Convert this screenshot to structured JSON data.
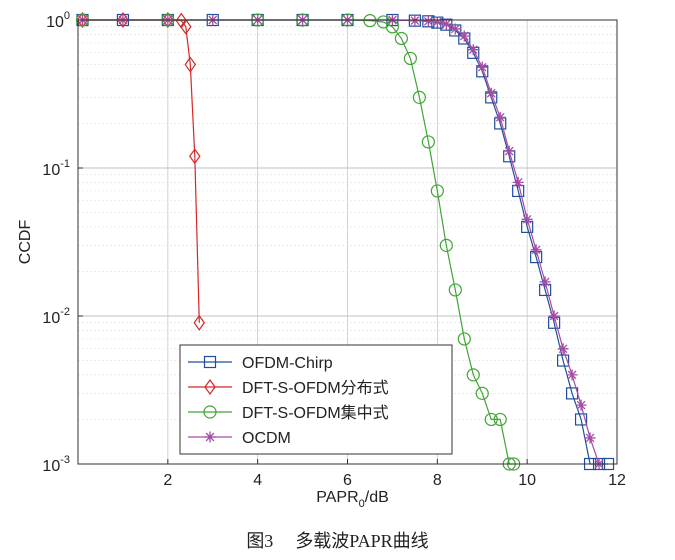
{
  "caption": {
    "label": "图3",
    "title": "多载波PAPR曲线"
  },
  "chart_data": {
    "type": "line",
    "title": "",
    "xlabel_main": "PAPR",
    "xlabel_sub": "0",
    "xlabel_unit": "/dB",
    "ylabel": "CCDF",
    "xlim": [
      0,
      12
    ],
    "ylim": [
      0.001,
      1
    ],
    "yscale": "log",
    "grid": true,
    "legend_position": "bottom-left",
    "x_ticks": [
      2,
      4,
      6,
      8,
      10,
      12
    ],
    "y_ticks": [
      {
        "value": 1,
        "base": "10",
        "exp": "0"
      },
      {
        "value": 0.1,
        "base": "10",
        "exp": "-1"
      },
      {
        "value": 0.01,
        "base": "10",
        "exp": "-2"
      },
      {
        "value": 0.001,
        "base": "10",
        "exp": "-3"
      }
    ],
    "series": [
      {
        "name": "OFDM-Chirp",
        "color": "#1f4e9c",
        "marker": "square",
        "x": [
          0.1,
          1,
          2,
          3,
          4,
          5,
          6,
          7,
          7.5,
          7.8,
          8.0,
          8.2,
          8.4,
          8.6,
          8.8,
          9.0,
          9.2,
          9.4,
          9.6,
          9.8,
          10.0,
          10.2,
          10.4,
          10.6,
          10.8,
          11.0,
          11.2,
          11.4,
          11.6,
          11.8
        ],
        "y": [
          1,
          1,
          1,
          1,
          1,
          1,
          1,
          1,
          0.99,
          0.98,
          0.96,
          0.93,
          0.85,
          0.75,
          0.6,
          0.45,
          0.3,
          0.2,
          0.12,
          0.07,
          0.04,
          0.025,
          0.015,
          0.009,
          0.005,
          0.003,
          0.002,
          0.001,
          0.001,
          0.001
        ]
      },
      {
        "name": "DFT-S-OFDM分布式",
        "color": "#d62728",
        "marker": "diamond",
        "x": [
          0.1,
          1.0,
          2.0,
          2.3,
          2.4,
          2.5,
          2.6,
          2.7
        ],
        "y": [
          1,
          1,
          1,
          0.99,
          0.9,
          0.5,
          0.12,
          0.009
        ]
      },
      {
        "name": "DFT-S-OFDM集中式",
        "color": "#3fa535",
        "marker": "circle",
        "x": [
          0.1,
          2,
          4,
          5,
          6,
          6.5,
          6.8,
          7.0,
          7.2,
          7.4,
          7.6,
          7.8,
          8.0,
          8.2,
          8.4,
          8.6,
          8.8,
          9.0,
          9.2,
          9.4,
          9.6,
          9.7
        ],
        "y": [
          1,
          1,
          1,
          1,
          1,
          0.99,
          0.97,
          0.9,
          0.75,
          0.55,
          0.3,
          0.15,
          0.07,
          0.03,
          0.015,
          0.007,
          0.004,
          0.003,
          0.002,
          0.002,
          0.001,
          0.001
        ]
      },
      {
        "name": "OCDM",
        "color": "#a64ca6",
        "marker": "star",
        "x": [
          0.1,
          1,
          2,
          3,
          4,
          5,
          6,
          7,
          7.5,
          7.8,
          8.0,
          8.2,
          8.4,
          8.6,
          8.8,
          9.0,
          9.2,
          9.4,
          9.6,
          9.8,
          10.0,
          10.2,
          10.4,
          10.6,
          10.8,
          11.0,
          11.2,
          11.4,
          11.6
        ],
        "y": [
          1,
          1,
          1,
          1,
          1,
          1,
          1,
          1,
          0.99,
          0.98,
          0.97,
          0.94,
          0.87,
          0.78,
          0.63,
          0.48,
          0.32,
          0.22,
          0.13,
          0.08,
          0.045,
          0.028,
          0.017,
          0.01,
          0.006,
          0.004,
          0.0025,
          0.0015,
          0.001
        ]
      }
    ]
  }
}
